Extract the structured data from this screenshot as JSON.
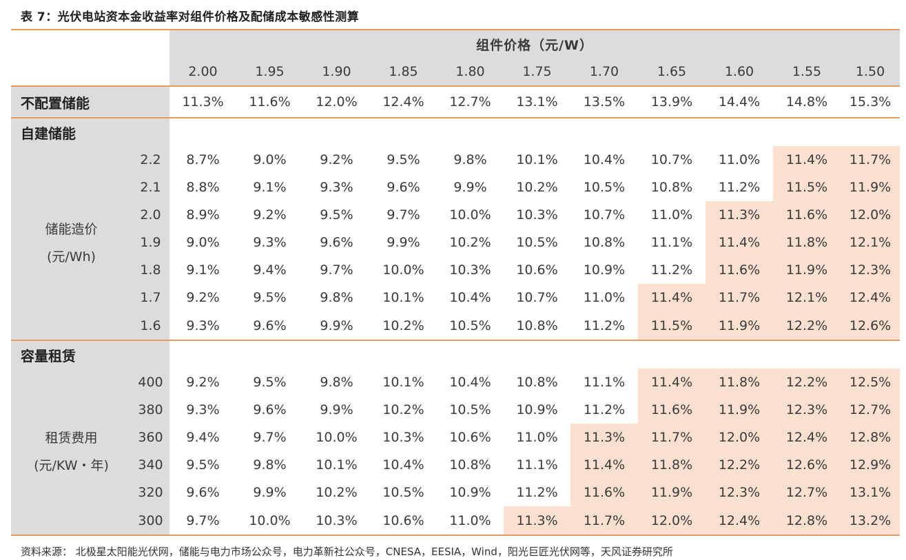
{
  "title": "表 7：光伏电站资本金收益率对组件价格及配储成本敏感性测算",
  "header": {
    "group_label": "组件价格（元/W）",
    "prices": [
      "2.00",
      "1.95",
      "1.90",
      "1.85",
      "1.80",
      "1.75",
      "1.70",
      "1.65",
      "1.60",
      "1.55",
      "1.50"
    ]
  },
  "no_storage": {
    "label": "不配置储能",
    "values": [
      "11.3%",
      "11.6%",
      "12.0%",
      "12.4%",
      "12.7%",
      "13.1%",
      "13.5%",
      "13.9%",
      "14.4%",
      "14.8%",
      "15.3%"
    ]
  },
  "self_built": {
    "section_label": "自建储能",
    "param_name_line1": "储能造价",
    "param_name_line2": "(元/Wh)",
    "rows": [
      {
        "param": "2.2",
        "values": [
          "8.7%",
          "9.0%",
          "9.2%",
          "9.5%",
          "9.8%",
          "10.1%",
          "10.4%",
          "10.7%",
          "11.0%",
          "11.4%",
          "11.7%"
        ]
      },
      {
        "param": "2.1",
        "values": [
          "8.8%",
          "9.1%",
          "9.3%",
          "9.6%",
          "9.9%",
          "10.2%",
          "10.5%",
          "10.8%",
          "11.2%",
          "11.5%",
          "11.9%"
        ]
      },
      {
        "param": "2.0",
        "values": [
          "8.9%",
          "9.2%",
          "9.5%",
          "9.7%",
          "10.0%",
          "10.3%",
          "10.7%",
          "11.0%",
          "11.3%",
          "11.6%",
          "12.0%"
        ]
      },
      {
        "param": "1.9",
        "values": [
          "9.0%",
          "9.3%",
          "9.6%",
          "9.9%",
          "10.2%",
          "10.5%",
          "10.8%",
          "11.1%",
          "11.4%",
          "11.8%",
          "12.1%"
        ]
      },
      {
        "param": "1.8",
        "values": [
          "9.1%",
          "9.4%",
          "9.7%",
          "10.0%",
          "10.3%",
          "10.6%",
          "10.9%",
          "11.2%",
          "11.6%",
          "11.9%",
          "12.3%"
        ]
      },
      {
        "param": "1.7",
        "values": [
          "9.2%",
          "9.5%",
          "9.8%",
          "10.1%",
          "10.4%",
          "10.7%",
          "11.0%",
          "11.4%",
          "11.7%",
          "12.1%",
          "12.4%"
        ]
      },
      {
        "param": "1.6",
        "values": [
          "9.3%",
          "9.6%",
          "9.9%",
          "10.2%",
          "10.5%",
          "10.8%",
          "11.2%",
          "11.5%",
          "11.9%",
          "12.2%",
          "12.6%"
        ]
      }
    ]
  },
  "leasing": {
    "section_label": "容量租赁",
    "param_name_line1": "租赁费用",
    "param_name_line2": "(元/KW・年)",
    "rows": [
      {
        "param": "400",
        "values": [
          "9.2%",
          "9.5%",
          "9.8%",
          "10.1%",
          "10.4%",
          "10.8%",
          "11.1%",
          "11.4%",
          "11.8%",
          "12.2%",
          "12.5%"
        ]
      },
      {
        "param": "380",
        "values": [
          "9.3%",
          "9.6%",
          "9.9%",
          "10.2%",
          "10.5%",
          "10.9%",
          "11.2%",
          "11.6%",
          "11.9%",
          "12.3%",
          "12.7%"
        ]
      },
      {
        "param": "360",
        "values": [
          "9.4%",
          "9.7%",
          "10.0%",
          "10.3%",
          "10.6%",
          "11.0%",
          "11.3%",
          "11.7%",
          "12.0%",
          "12.4%",
          "12.8%"
        ]
      },
      {
        "param": "340",
        "values": [
          "9.5%",
          "9.8%",
          "10.1%",
          "10.4%",
          "10.8%",
          "11.1%",
          "11.4%",
          "11.8%",
          "12.2%",
          "12.6%",
          "12.9%"
        ]
      },
      {
        "param": "320",
        "values": [
          "9.6%",
          "9.9%",
          "10.2%",
          "10.5%",
          "10.9%",
          "11.2%",
          "11.6%",
          "11.9%",
          "12.3%",
          "12.7%",
          "13.1%"
        ]
      },
      {
        "param": "300",
        "values": [
          "9.7%",
          "10.0%",
          "10.3%",
          "10.6%",
          "11.0%",
          "11.3%",
          "11.7%",
          "12.0%",
          "12.4%",
          "12.8%",
          "13.2%"
        ]
      }
    ]
  },
  "highlight_color": "#fbe0d0",
  "accent_color": "#e39a63",
  "source": "资料来源：  北极星太阳能光伏网，储能与电力市场公众号，电力革新社公众号，CNESA，EESIA，Wind，阳光巨匠光伏网等，天风证券研究所"
}
